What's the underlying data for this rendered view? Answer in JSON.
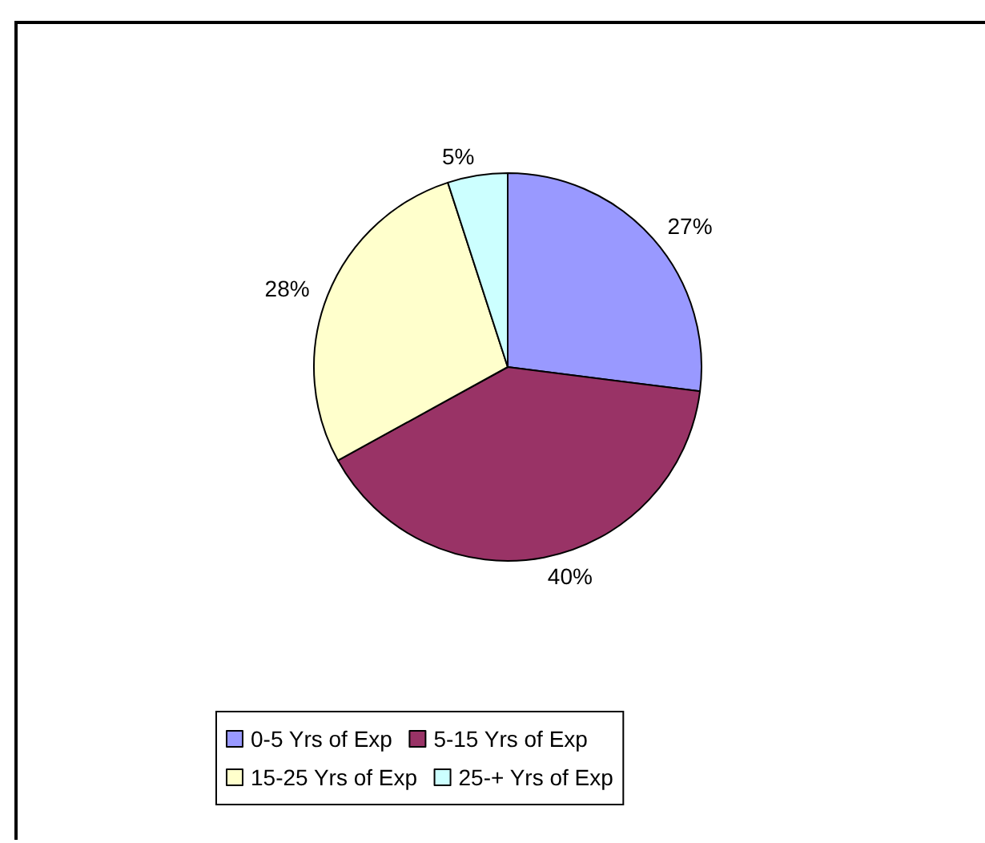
{
  "chart_data": {
    "type": "pie",
    "categories": [
      "0-5 Yrs of Exp",
      "5-15 Yrs of Exp",
      "15-25 Yrs of Exp",
      "25-+ Yrs of Exp"
    ],
    "values": [
      27,
      40,
      28,
      5
    ],
    "colors": [
      "#9999ff",
      "#993366",
      "#ffffcc",
      "#ccffff"
    ],
    "value_labels": [
      "27%",
      "40%",
      "28%",
      "5%"
    ],
    "legend": "bottom"
  }
}
